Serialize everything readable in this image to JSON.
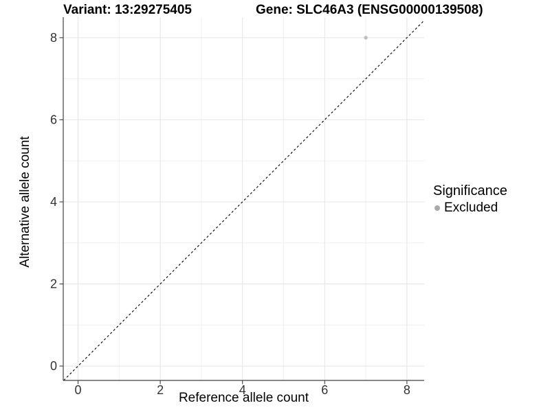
{
  "figure": {
    "title_left": "Variant: 13:29275405",
    "title_right": "Gene: SLC46A3 (ENSG00000139508)"
  },
  "chart_data": {
    "type": "scatter",
    "title": "Variant: 13:29275405 / Gene: SLC46A3 (ENSG00000139508)",
    "xlabel": "Reference allele count",
    "ylabel": "Alternative allele count",
    "xlim": [
      -0.36,
      8.42
    ],
    "ylim": [
      -0.35,
      8.5
    ],
    "x_ticks": [
      0,
      2,
      4,
      6,
      8
    ],
    "y_ticks": [
      0,
      2,
      4,
      6,
      8
    ],
    "x_minor": [
      1,
      3,
      5,
      7
    ],
    "y_minor": [
      1,
      3,
      5,
      7
    ],
    "grid": true,
    "points": [
      {
        "x": 7,
        "y": 8,
        "series": "Excluded"
      }
    ],
    "series": [
      {
        "name": "Excluded",
        "color": "#bdbdbd"
      }
    ],
    "reference_line": {
      "type": "identity y=x",
      "style": "dashed",
      "color": "#000000"
    },
    "legend": {
      "title": "Significance",
      "position": "right",
      "items": [
        {
          "label": "Excluded",
          "color": "#aaaaaa"
        }
      ]
    },
    "colors": {
      "grid_major": "#e4e4e4",
      "grid_minor": "#efefef",
      "axis_line": "#404040",
      "tick_text": "#333333",
      "background": "#ffffff"
    }
  }
}
